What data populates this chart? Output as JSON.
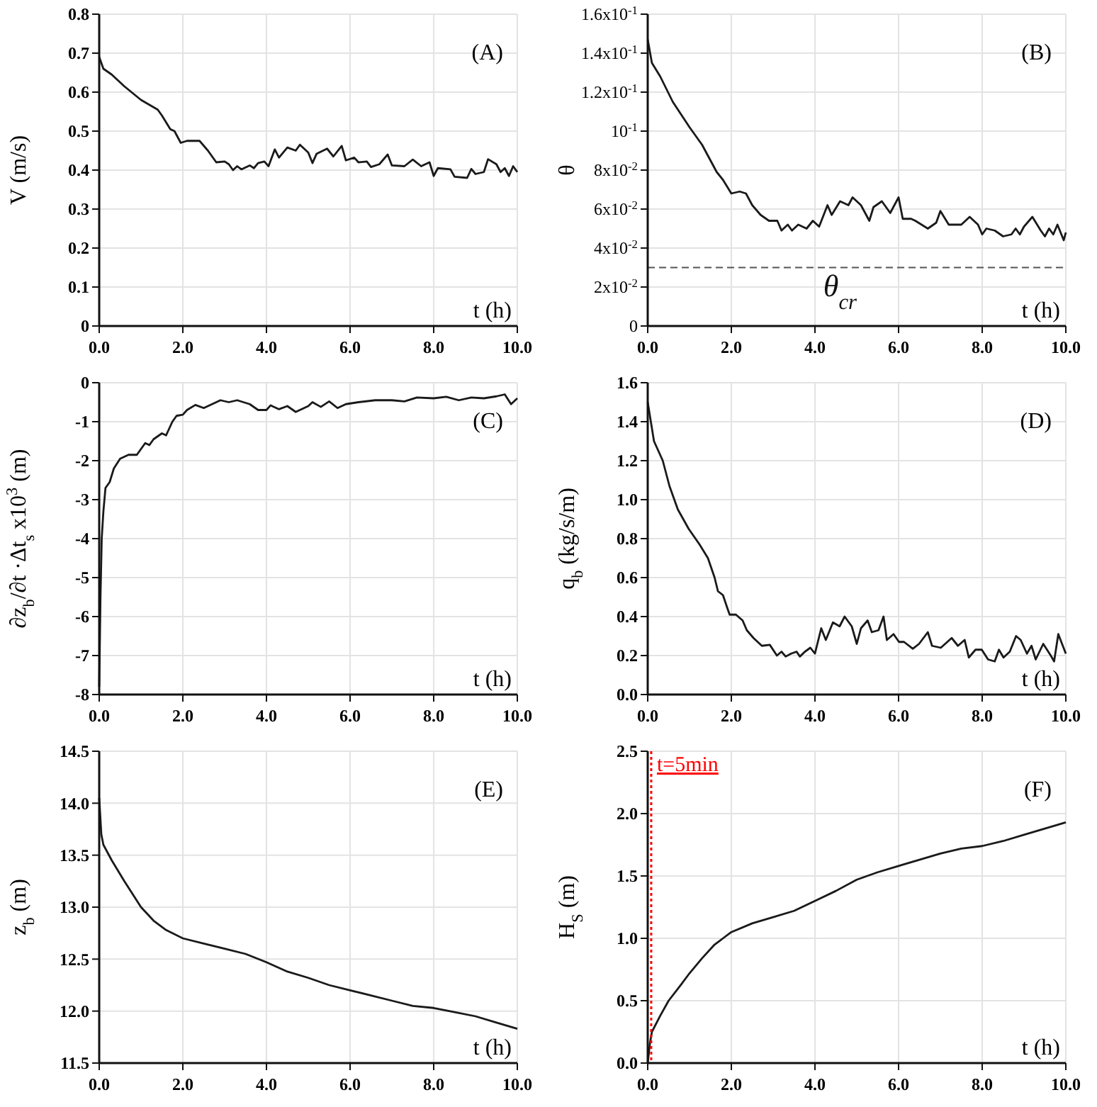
{
  "chart_data": [
    {
      "type": "line",
      "xlabel": "t (h)",
      "ylabel": "V (m/s)",
      "annotations": [
        "(A)"
      ],
      "grid": true,
      "xlim": [
        0,
        10
      ],
      "xticks": [
        {
          "value": 0,
          "label": "0.0"
        },
        {
          "value": 2,
          "label": "2.0"
        },
        {
          "value": 4,
          "label": "4.0"
        },
        {
          "value": 6,
          "label": "6.0"
        },
        {
          "value": 8,
          "label": "8.0"
        },
        {
          "value": 10,
          "label": "10.0"
        }
      ],
      "ylim": [
        0,
        0.8
      ],
      "yticks": [
        0,
        0.1,
        0.2,
        0.3,
        0.4,
        0.5,
        0.6,
        0.7,
        0.8
      ],
      "series": [
        {
          "color": "#1a1a1a",
          "x": [
            0,
            0.1,
            0.3,
            0.6,
            1.0,
            1.4,
            1.5,
            1.7,
            1.8,
            1.95,
            2.1,
            2.4,
            2.6,
            2.8,
            3.0,
            3.1,
            3.2,
            3.3,
            3.4,
            3.6,
            3.7,
            3.8,
            3.95,
            4.05,
            4.2,
            4.3,
            4.5,
            4.7,
            4.8,
            5.0,
            5.1,
            5.2,
            5.45,
            5.6,
            5.8,
            5.9,
            6.1,
            6.2,
            6.4,
            6.5,
            6.7,
            6.9,
            7.0,
            7.3,
            7.5,
            7.7,
            7.9,
            8.0,
            8.1,
            8.4,
            8.5,
            8.8,
            8.9,
            9.0,
            9.2,
            9.3,
            9.5,
            9.6,
            9.7,
            9.8,
            9.9,
            10.0
          ],
          "values": [
            0.69,
            0.66,
            0.645,
            0.615,
            0.58,
            0.555,
            0.54,
            0.505,
            0.5,
            0.47,
            0.475,
            0.475,
            0.45,
            0.42,
            0.422,
            0.415,
            0.4,
            0.41,
            0.402,
            0.412,
            0.405,
            0.418,
            0.422,
            0.41,
            0.453,
            0.432,
            0.458,
            0.45,
            0.465,
            0.445,
            0.418,
            0.442,
            0.455,
            0.435,
            0.462,
            0.425,
            0.432,
            0.42,
            0.422,
            0.408,
            0.415,
            0.44,
            0.412,
            0.41,
            0.427,
            0.41,
            0.42,
            0.385,
            0.405,
            0.402,
            0.383,
            0.38,
            0.403,
            0.39,
            0.395,
            0.428,
            0.415,
            0.395,
            0.405,
            0.385,
            0.41,
            0.395
          ]
        }
      ]
    },
    {
      "type": "line",
      "xlabel": "t (h)",
      "ylabel": "θ",
      "annotations": [
        "(B)"
      ],
      "grid": true,
      "xlim": [
        0,
        10
      ],
      "xticks": [
        {
          "value": 0,
          "label": "0.0"
        },
        {
          "value": 2,
          "label": "2.0"
        },
        {
          "value": 4,
          "label": "4.0"
        },
        {
          "value": 6,
          "label": "6.0"
        },
        {
          "value": 8,
          "label": "8.0"
        },
        {
          "value": 10,
          "label": "10.0"
        }
      ],
      "ylim": [
        0,
        0.16
      ],
      "yticks": [
        0,
        {
          "value": 0.02,
          "label": "2x10$^{-2}$"
        },
        {
          "value": 0.04,
          "label": "4x10$^{-2}$"
        },
        {
          "value": 0.06,
          "label": "6x10$^{-2}$"
        },
        {
          "value": 0.08,
          "label": "8x10$^{-2}$"
        },
        {
          "value": 0.1,
          "label": "10$^{-1}$"
        },
        {
          "value": 0.12,
          "label": "1.2x10$^{-1}$"
        },
        {
          "value": 0.14,
          "label": "1.4x10$^{-1}$"
        },
        {
          "value": 0.16,
          "label": "1.6x10$^{-1}$"
        }
      ],
      "ref_lines": [
        {
          "axis": "y",
          "value": 0.03,
          "label": "θ$_{cr}$",
          "color": "#555555",
          "line_style": "dashed"
        }
      ],
      "series": [
        {
          "color": "#1a1a1a",
          "x": [
            0,
            0.1,
            0.3,
            0.6,
            1.0,
            1.3,
            1.5,
            1.65,
            1.8,
            2.0,
            2.2,
            2.35,
            2.5,
            2.7,
            2.9,
            3.1,
            3.2,
            3.35,
            3.45,
            3.6,
            3.8,
            3.95,
            4.1,
            4.3,
            4.4,
            4.6,
            4.8,
            4.9,
            5.1,
            5.3,
            5.4,
            5.6,
            5.8,
            6.0,
            6.1,
            6.3,
            6.4,
            6.7,
            6.9,
            7.0,
            7.2,
            7.5,
            7.7,
            7.9,
            8.0,
            8.1,
            8.3,
            8.5,
            8.7,
            8.8,
            8.9,
            9.0,
            9.2,
            9.4,
            9.5,
            9.6,
            9.7,
            9.8,
            9.95,
            10.0
          ],
          "values": [
            0.147,
            0.135,
            0.128,
            0.115,
            0.102,
            0.093,
            0.085,
            0.079,
            0.075,
            0.068,
            0.069,
            0.068,
            0.062,
            0.057,
            0.054,
            0.054,
            0.049,
            0.052,
            0.049,
            0.052,
            0.05,
            0.054,
            0.051,
            0.062,
            0.057,
            0.064,
            0.062,
            0.066,
            0.062,
            0.054,
            0.061,
            0.064,
            0.058,
            0.066,
            0.055,
            0.055,
            0.054,
            0.05,
            0.053,
            0.059,
            0.052,
            0.052,
            0.056,
            0.052,
            0.047,
            0.05,
            0.049,
            0.046,
            0.047,
            0.05,
            0.047,
            0.051,
            0.056,
            0.049,
            0.046,
            0.05,
            0.047,
            0.052,
            0.044,
            0.048
          ]
        }
      ]
    },
    {
      "type": "line",
      "xlabel": "t (h)",
      "ylabel": "∂z$_{b}$/∂t ·Δt$_{s}$ x10$^{3}$ (m)",
      "annotations": [
        "(C)"
      ],
      "grid": true,
      "xlim": [
        0,
        10
      ],
      "xticks": [
        {
          "value": 0,
          "label": "0.0"
        },
        {
          "value": 2,
          "label": "2.0"
        },
        {
          "value": 4,
          "label": "4.0"
        },
        {
          "value": 6,
          "label": "6.0"
        },
        {
          "value": 8,
          "label": "8.0"
        },
        {
          "value": 10,
          "label": "10.0"
        }
      ],
      "ylim": [
        -8,
        0
      ],
      "yticks": [
        -8,
        -7,
        -6,
        -5,
        -4,
        -3,
        -2,
        -1,
        0
      ],
      "series": [
        {
          "color": "#1a1a1a",
          "x": [
            0,
            0.03,
            0.06,
            0.1,
            0.15,
            0.25,
            0.35,
            0.5,
            0.7,
            0.9,
            1.0,
            1.1,
            1.2,
            1.3,
            1.5,
            1.6,
            1.75,
            1.85,
            2.0,
            2.1,
            2.3,
            2.5,
            2.7,
            2.9,
            3.1,
            3.3,
            3.6,
            3.8,
            4.0,
            4.1,
            4.3,
            4.5,
            4.7,
            5.0,
            5.1,
            5.3,
            5.5,
            5.7,
            5.9,
            6.2,
            6.6,
            7.0,
            7.3,
            7.6,
            8.0,
            8.3,
            8.6,
            8.9,
            9.2,
            9.5,
            9.7,
            9.85,
            10.0
          ],
          "values": [
            -7.8,
            -5.5,
            -4.0,
            -3.3,
            -2.7,
            -2.55,
            -2.2,
            -1.95,
            -1.85,
            -1.85,
            -1.7,
            -1.55,
            -1.6,
            -1.45,
            -1.3,
            -1.35,
            -1.0,
            -0.85,
            -0.82,
            -0.7,
            -0.57,
            -0.65,
            -0.55,
            -0.45,
            -0.5,
            -0.45,
            -0.55,
            -0.7,
            -0.7,
            -0.58,
            -0.68,
            -0.6,
            -0.75,
            -0.6,
            -0.5,
            -0.62,
            -0.48,
            -0.65,
            -0.55,
            -0.5,
            -0.45,
            -0.45,
            -0.48,
            -0.38,
            -0.4,
            -0.36,
            -0.45,
            -0.38,
            -0.4,
            -0.35,
            -0.3,
            -0.55,
            -0.4
          ]
        }
      ]
    },
    {
      "type": "line",
      "xlabel": "t (h)",
      "ylabel": "q$_{b}$ (kg/s/m)",
      "annotations": [
        "(D)"
      ],
      "grid": true,
      "xlim": [
        0,
        10
      ],
      "xticks": [
        {
          "value": 0,
          "label": "0.0"
        },
        {
          "value": 2,
          "label": "2.0"
        },
        {
          "value": 4,
          "label": "4.0"
        },
        {
          "value": 6,
          "label": "6.0"
        },
        {
          "value": 8,
          "label": "8.0"
        },
        {
          "value": 10,
          "label": "10.0"
        }
      ],
      "ylim": [
        0,
        1.6
      ],
      "yticks": [
        {
          "value": 0,
          "label": "0.0"
        },
        0.2,
        0.4,
        0.6,
        0.8,
        {
          "value": 1,
          "label": "1.0"
        },
        1.2,
        1.4,
        1.6
      ],
      "series": [
        {
          "color": "#1a1a1a",
          "x": [
            0,
            0.15,
            0.36,
            0.52,
            0.72,
            0.98,
            1.24,
            1.44,
            1.6,
            1.68,
            1.8,
            1.91,
            1.96,
            2.11,
            2.27,
            2.37,
            2.53,
            2.73,
            2.92,
            3.09,
            3.2,
            3.3,
            3.43,
            3.56,
            3.64,
            3.76,
            3.89,
            4.0,
            4.15,
            4.26,
            4.43,
            4.59,
            4.71,
            4.88,
            5.0,
            5.1,
            5.26,
            5.36,
            5.52,
            5.64,
            5.72,
            5.88,
            6.01,
            6.13,
            6.34,
            6.49,
            6.7,
            6.8,
            7.01,
            7.27,
            7.42,
            7.58,
            7.68,
            7.84,
            7.99,
            8.14,
            8.3,
            8.4,
            8.51,
            8.66,
            8.81,
            8.92,
            9.07,
            9.18,
            9.28,
            9.46,
            9.64,
            9.72,
            9.82,
            10.0
          ],
          "values": [
            1.5,
            1.3,
            1.2,
            1.07,
            0.95,
            0.85,
            0.77,
            0.7,
            0.6,
            0.53,
            0.51,
            0.44,
            0.41,
            0.41,
            0.38,
            0.33,
            0.29,
            0.25,
            0.255,
            0.2,
            0.22,
            0.195,
            0.21,
            0.22,
            0.195,
            0.22,
            0.24,
            0.21,
            0.34,
            0.28,
            0.37,
            0.35,
            0.4,
            0.35,
            0.26,
            0.34,
            0.38,
            0.32,
            0.33,
            0.4,
            0.28,
            0.31,
            0.27,
            0.27,
            0.235,
            0.26,
            0.32,
            0.25,
            0.24,
            0.29,
            0.25,
            0.28,
            0.19,
            0.23,
            0.23,
            0.18,
            0.17,
            0.23,
            0.19,
            0.22,
            0.3,
            0.28,
            0.21,
            0.25,
            0.18,
            0.26,
            0.2,
            0.17,
            0.31,
            0.21
          ]
        }
      ]
    },
    {
      "type": "line",
      "xlabel": "t (h)",
      "ylabel": "z$_{b}$ (m)",
      "annotations": [
        "(E)"
      ],
      "grid": true,
      "xlim": [
        0,
        10
      ],
      "xticks": [
        {
          "value": 0,
          "label": "0.0"
        },
        {
          "value": 2,
          "label": "2.0"
        },
        {
          "value": 4,
          "label": "4.0"
        },
        {
          "value": 6,
          "label": "6.0"
        },
        {
          "value": 8,
          "label": "8.0"
        },
        {
          "value": 10,
          "label": "10.0"
        }
      ],
      "ylim": [
        11.5,
        14.5
      ],
      "yticks": [
        11.5,
        {
          "value": 12,
          "label": "12.0"
        },
        12.5,
        {
          "value": 13,
          "label": "13.0"
        },
        13.5,
        {
          "value": 14,
          "label": "14.0"
        },
        14.5
      ],
      "series": [
        {
          "color": "#1a1a1a",
          "x": [
            0,
            0.05,
            0.1,
            0.3,
            0.6,
            1.0,
            1.3,
            1.6,
            2.0,
            2.5,
            3.0,
            3.5,
            4.0,
            4.5,
            5.0,
            5.5,
            6.0,
            6.5,
            7.0,
            7.5,
            8.0,
            8.5,
            9.0,
            9.5,
            10.0
          ],
          "values": [
            14.05,
            13.7,
            13.6,
            13.45,
            13.25,
            13.0,
            12.87,
            12.78,
            12.7,
            12.65,
            12.6,
            12.55,
            12.47,
            12.38,
            12.32,
            12.25,
            12.2,
            12.15,
            12.1,
            12.05,
            12.03,
            11.99,
            11.95,
            11.89,
            11.83
          ]
        }
      ]
    },
    {
      "type": "line",
      "xlabel": "t (h)",
      "ylabel": "H$_{S}$ (m)",
      "annotations": [
        "(F)",
        {
          "text": "t=5min",
          "x": 0.0833,
          "y": 2.4
        }
      ],
      "grid": true,
      "xlim": [
        0,
        10
      ],
      "xticks": [
        {
          "value": 0,
          "label": "0.0"
        },
        {
          "value": 2,
          "label": "2.0"
        },
        {
          "value": 4,
          "label": "4.0"
        },
        {
          "value": 6,
          "label": "6.0"
        },
        {
          "value": 8,
          "label": "8.0"
        },
        {
          "value": 10,
          "label": "10.0"
        }
      ],
      "ylim": [
        0,
        2.5
      ],
      "yticks": [
        {
          "value": 0,
          "label": "0.0"
        },
        0.5,
        {
          "value": 1,
          "label": "1.0"
        },
        1.5,
        {
          "value": 2,
          "label": "2.0"
        },
        2.5
      ],
      "ref_lines": [
        {
          "axis": "x",
          "value": 0.0833,
          "color": "#ff0000",
          "line_style": "dotted"
        }
      ],
      "series": [
        {
          "color": "#1a1a1a",
          "x": [
            0,
            0.05,
            0.1,
            0.3,
            0.5,
            0.8,
            1.0,
            1.3,
            1.6,
            1.8,
            2.0,
            2.5,
            3.0,
            3.5,
            4.0,
            4.5,
            5.0,
            5.5,
            6.0,
            6.5,
            7.0,
            7.5,
            8.0,
            8.5,
            9.0,
            9.5,
            10.0
          ],
          "values": [
            0,
            0.15,
            0.25,
            0.38,
            0.5,
            0.63,
            0.72,
            0.84,
            0.95,
            1.0,
            1.05,
            1.12,
            1.17,
            1.22,
            1.3,
            1.38,
            1.47,
            1.53,
            1.58,
            1.63,
            1.68,
            1.72,
            1.74,
            1.78,
            1.83,
            1.88,
            1.93
          ]
        }
      ]
    }
  ]
}
